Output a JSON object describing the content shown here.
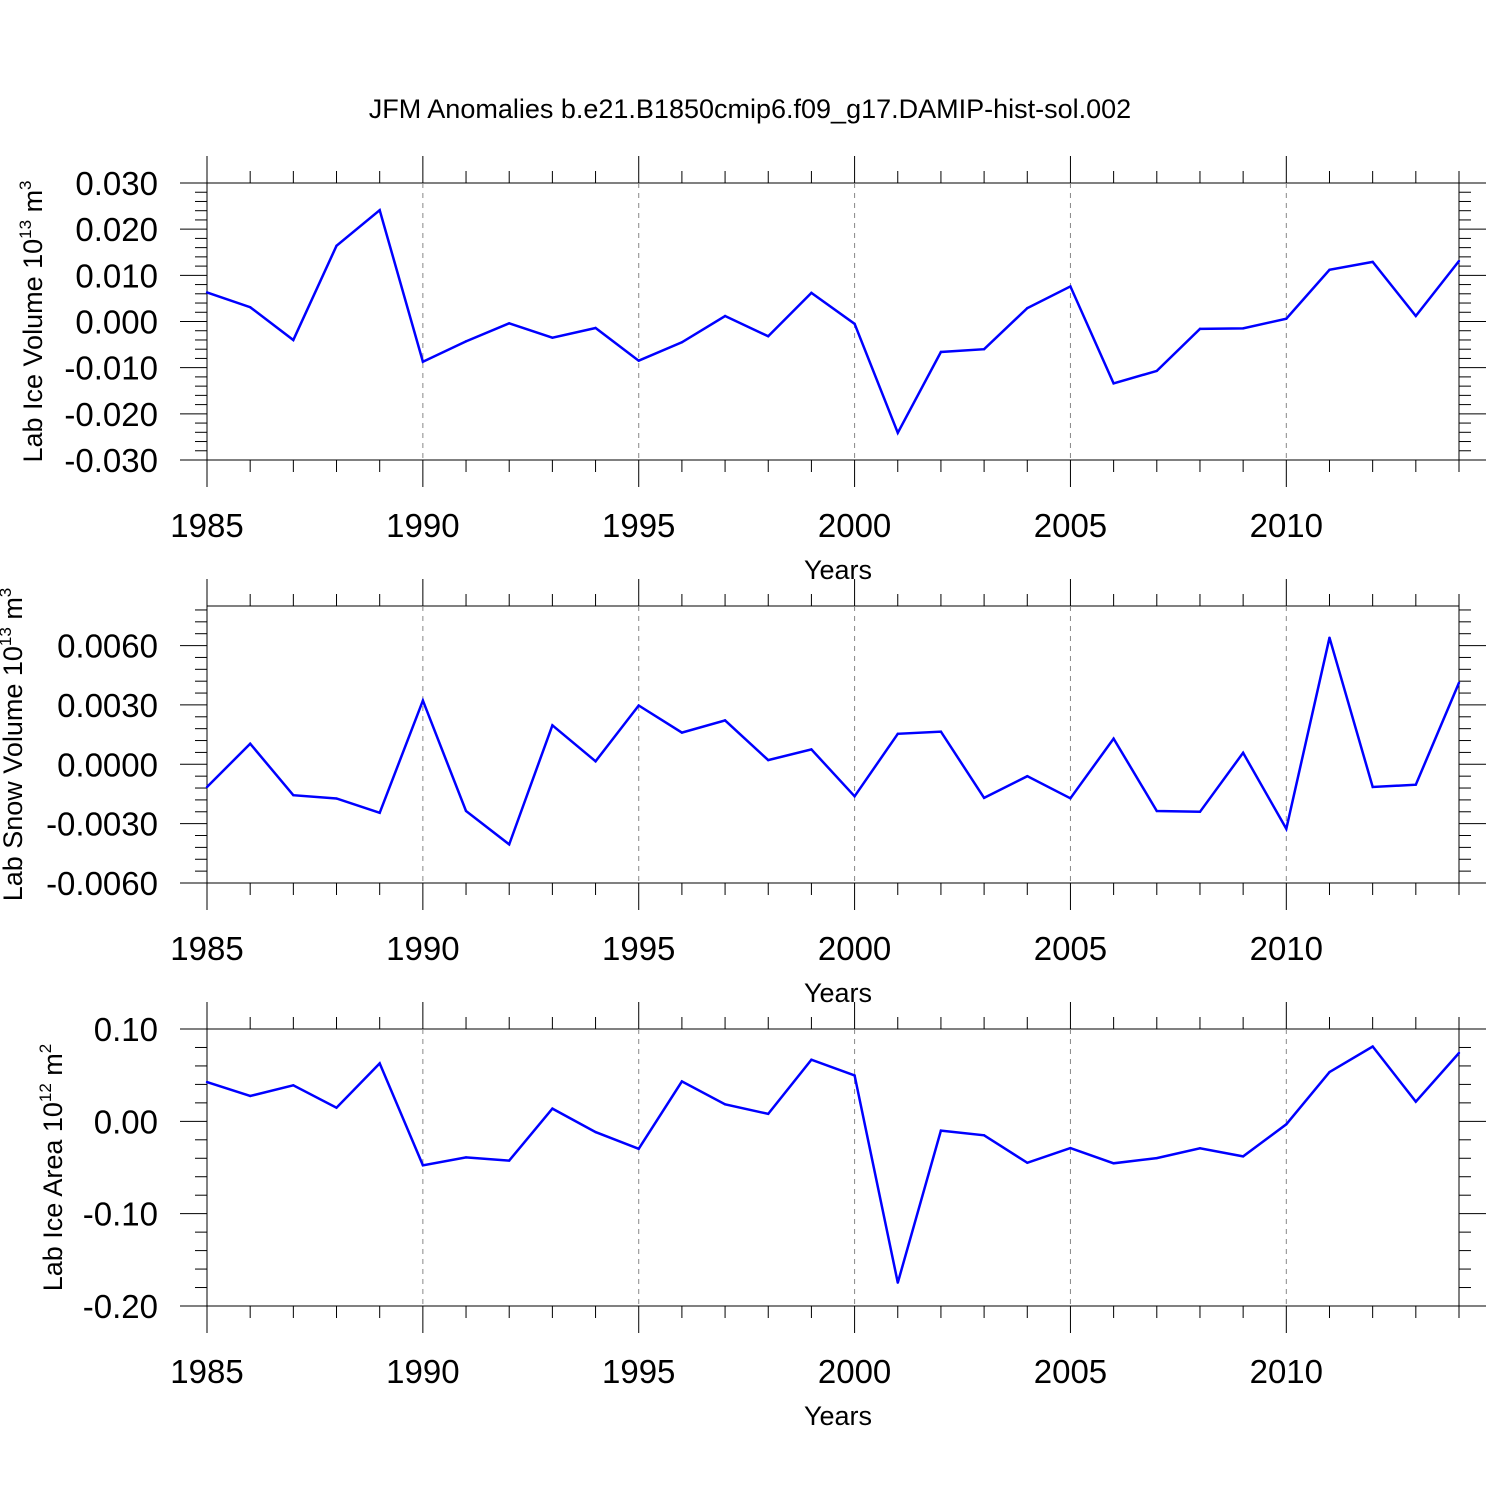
{
  "title": "JFM Anomalies b.e21.B1850cmip6.f09_g17.DAMIP-hist-sol.002",
  "colors": {
    "line": "#0000ff",
    "axis": "#000000",
    "grid": "#888888"
  },
  "chart_data": [
    {
      "type": "line",
      "title": "JFM Anomalies b.e21.B1850cmip6.f09_g17.DAMIP-hist-sol.002",
      "xlabel": "Years",
      "ylabel": {
        "main": "Lab Ice Volume 10",
        "exp": "13",
        "unit": " m",
        "unit_exp": "3"
      },
      "xlim": [
        1985,
        2014
      ],
      "ylim": [
        -0.03,
        0.03
      ],
      "x_ticks": [
        1985,
        1990,
        1995,
        2000,
        2005,
        2010
      ],
      "y_ticks": [
        "0.030",
        "0.020",
        "0.010",
        "0.000",
        "-0.010",
        "-0.020",
        "-0.030"
      ],
      "y_tick_values": [
        0.03,
        0.02,
        0.01,
        0.0,
        -0.01,
        -0.02,
        -0.03
      ],
      "grid": "vertical dashed at major x ticks",
      "x": [
        1985,
        1986,
        1987,
        1988,
        1989,
        1990,
        1991,
        1992,
        1993,
        1994,
        1995,
        1996,
        1997,
        1998,
        1999,
        2000,
        2001,
        2002,
        2003,
        2004,
        2005,
        2006,
        2007,
        2008,
        2009,
        2010,
        2011,
        2012,
        2013,
        2014
      ],
      "values": [
        0.0063,
        0.0031,
        -0.004,
        0.0164,
        0.0241,
        -0.0087,
        -0.0043,
        -0.0004,
        -0.0035,
        -0.0014,
        -0.0085,
        -0.0045,
        0.0012,
        -0.0032,
        0.0062,
        -0.0005,
        -0.0241,
        -0.0066,
        -0.006,
        0.0029,
        0.0076,
        -0.0134,
        -0.0107,
        -0.0016,
        -0.0015,
        0.0006,
        0.0112,
        0.0129,
        0.0012,
        0.0131
      ]
    },
    {
      "type": "line",
      "xlabel": "Years",
      "ylabel": {
        "main": "Lab Snow Volume 10",
        "exp": "13",
        "unit": " m",
        "unit_exp": "3"
      },
      "xlim": [
        1985,
        2014
      ],
      "ylim": [
        -0.006,
        0.008
      ],
      "x_ticks": [
        1985,
        1990,
        1995,
        2000,
        2005,
        2010
      ],
      "y_ticks": [
        "0.0060",
        "0.0030",
        "0.0000",
        "-0.0030",
        "-0.0060"
      ],
      "y_tick_values": [
        0.006,
        0.003,
        0.0,
        -0.003,
        -0.006
      ],
      "grid": "vertical dashed at major x ticks",
      "x": [
        1985,
        1986,
        1987,
        1988,
        1989,
        1990,
        1991,
        1992,
        1993,
        1994,
        1995,
        1996,
        1997,
        1998,
        1999,
        2000,
        2001,
        2002,
        2003,
        2004,
        2005,
        2006,
        2007,
        2008,
        2009,
        2010,
        2011,
        2012,
        2013,
        2014
      ],
      "values": [
        -0.00115,
        0.00104,
        -0.00156,
        -0.00173,
        -0.00245,
        0.00322,
        -0.00236,
        -0.00405,
        0.00197,
        0.00015,
        0.00297,
        0.0016,
        0.00222,
        0.00021,
        0.00075,
        -0.00162,
        0.00154,
        0.00165,
        -0.0017,
        -0.0006,
        -0.00172,
        0.0013,
        -0.00236,
        -0.0024,
        0.00058,
        -0.00326,
        0.0064,
        -0.00115,
        -0.00103,
        0.00412
      ]
    },
    {
      "type": "line",
      "xlabel": "Years",
      "ylabel": {
        "main": "Lab Ice Area 10",
        "exp": "12",
        "unit": " m",
        "unit_exp": "2"
      },
      "xlim": [
        1985,
        2014
      ],
      "ylim": [
        -0.2,
        0.1
      ],
      "x_ticks": [
        1985,
        1990,
        1995,
        2000,
        2005,
        2010
      ],
      "y_ticks": [
        "0.10",
        "0.00",
        "-0.10",
        "-0.20"
      ],
      "y_tick_values": [
        0.1,
        0.0,
        -0.1,
        -0.2
      ],
      "grid": "vertical dashed at major x ticks",
      "x": [
        1985,
        1986,
        1987,
        1988,
        1989,
        1990,
        1991,
        1992,
        1993,
        1994,
        1995,
        1996,
        1997,
        1998,
        1999,
        2000,
        2001,
        2002,
        2003,
        2004,
        2005,
        2006,
        2007,
        2008,
        2009,
        2010,
        2011,
        2012,
        2013,
        2014
      ],
      "values": [
        0.0425,
        0.0274,
        0.039,
        0.0148,
        0.0627,
        -0.0476,
        -0.0391,
        -0.0425,
        0.0138,
        -0.0117,
        -0.0298,
        0.0432,
        0.0184,
        0.0081,
        0.0668,
        0.0497,
        -0.1748,
        -0.01,
        -0.0151,
        -0.0449,
        -0.029,
        -0.0454,
        -0.0398,
        -0.0292,
        -0.038,
        -0.0032,
        0.0533,
        0.081,
        0.0213,
        0.074
      ]
    }
  ]
}
